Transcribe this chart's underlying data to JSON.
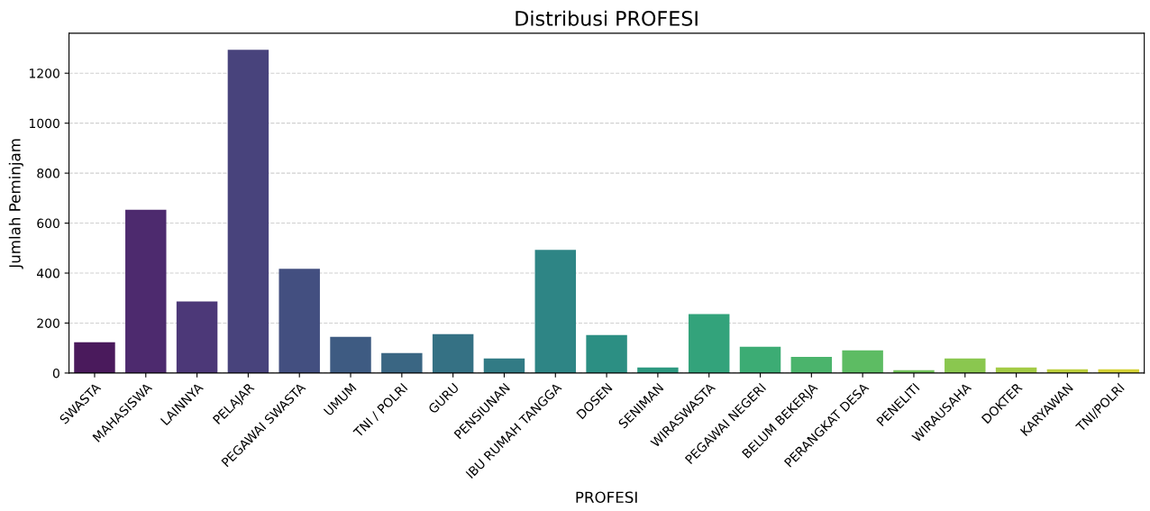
{
  "chart_data": {
    "type": "bar",
    "title": "Distribusi PROFESI",
    "xlabel": "PROFESI",
    "ylabel": "Jumlah Peminjam",
    "categories": [
      "SWASTA",
      "MAHASISWA",
      "LAINNYA",
      "PELAJAR",
      "PEGAWAI SWASTA",
      "UMUM",
      "TNI / POLRI",
      "GURU",
      "PENSIUNAN",
      "IBU RUMAH TANGGA",
      "DOSEN",
      "SENIMAN",
      "WIRASWASTA",
      "PEGAWAI NEGERI",
      "BELUM BEKERJA",
      "PERANGKAT DESA",
      "PENELITI",
      "WIRAUSAHA",
      "DOKTER",
      "KARYAWAN",
      "TNI/POLRI"
    ],
    "values": [
      123,
      653,
      286,
      1294,
      417,
      145,
      80,
      156,
      58,
      493,
      152,
      22,
      236,
      105,
      65,
      91,
      11,
      58,
      22,
      15,
      15
    ],
    "colors": [
      "#4a1a5c",
      "#4d2a6e",
      "#4c3878",
      "#48437c",
      "#434f80",
      "#3e5b82",
      "#3a6683",
      "#357184",
      "#327b85",
      "#2e8585",
      "#2c8f83",
      "#2d9980",
      "#33a37b",
      "#3cac74",
      "#4bb46c",
      "#5dbc63",
      "#72c25a",
      "#8ac74f",
      "#a3cb45",
      "#bccf3c",
      "#d4d236"
    ],
    "ylim": [
      0,
      1360
    ],
    "yticks": [
      0,
      200,
      400,
      600,
      800,
      1000,
      1200
    ],
    "grid": "y"
  }
}
